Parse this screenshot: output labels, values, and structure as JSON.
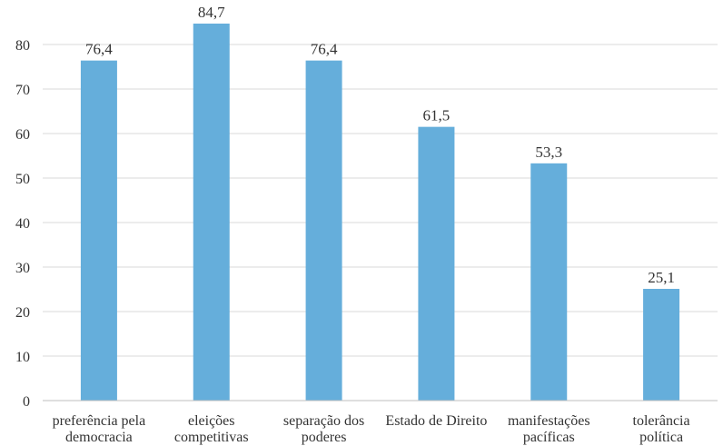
{
  "chart_data": {
    "type": "bar",
    "categories": [
      [
        "preferência pela",
        "democracia"
      ],
      [
        "eleições",
        "competitivas"
      ],
      [
        "separação dos",
        "poderes"
      ],
      [
        "Estado de Direito"
      ],
      [
        "manifestações",
        "pacíficas"
      ],
      [
        "tolerância",
        "política"
      ]
    ],
    "values": [
      76.4,
      84.7,
      76.4,
      61.5,
      53.3,
      25.1
    ],
    "data_labels": [
      "76,4",
      "84,7",
      "76,4",
      "61,5",
      "53,3",
      "25,1"
    ],
    "yticks": [
      0,
      10,
      20,
      30,
      40,
      50,
      60,
      70,
      80
    ],
    "ylim": [
      0,
      90
    ],
    "grid": true,
    "bar_color": "#65aedb",
    "title": "",
    "xlabel": "",
    "ylabel": ""
  }
}
